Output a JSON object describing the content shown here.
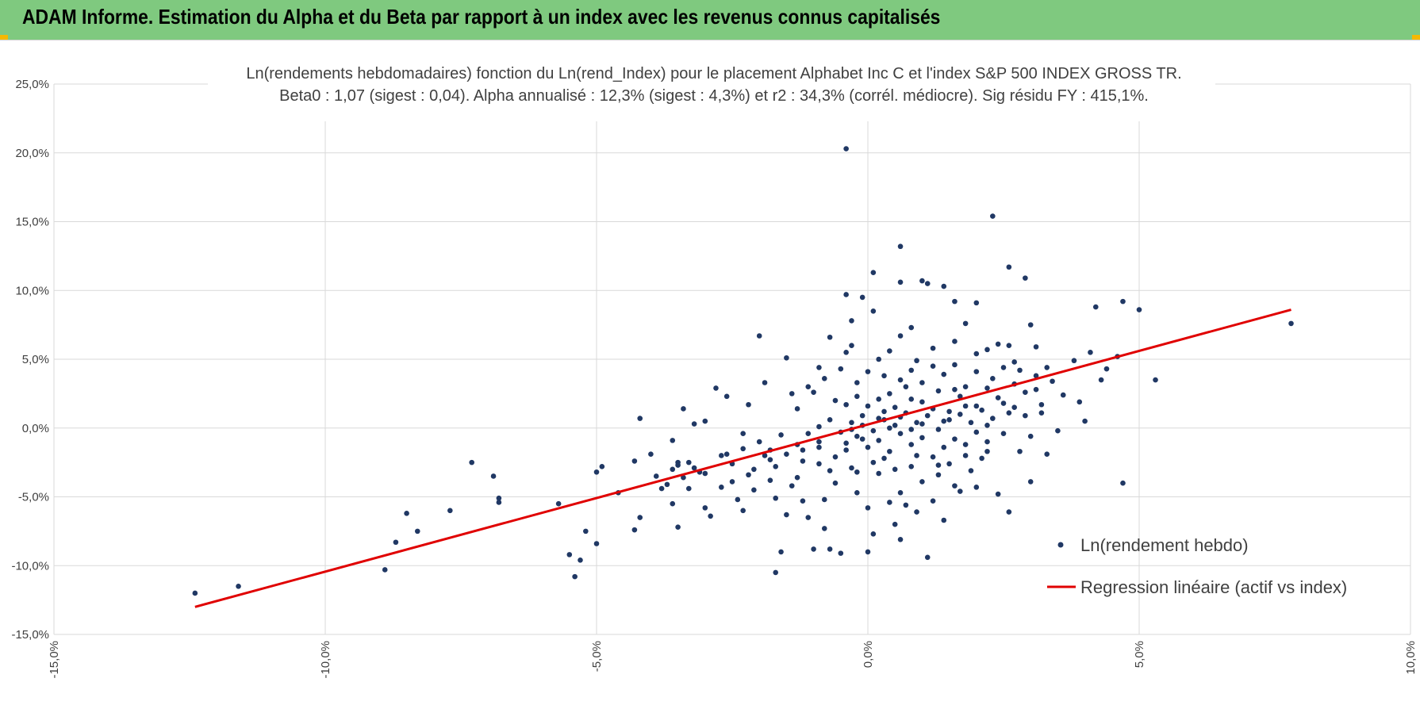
{
  "header": {
    "title": "ADAM Informe. Estimation du Alpha et du Beta par rapport à un index avec les revenus connus capitalisés"
  },
  "colors": {
    "header_bg": "#7fc97f",
    "point": "#203864",
    "regression": "#e00000",
    "grid": "#d9d9d9",
    "corner": "#f5b800"
  },
  "chart_data": {
    "type": "scatter",
    "title": "Ln(rendements hebdomadaires) fonction du Ln(rend_Index) pour le placement Alphabet Inc C et l'index S&P 500 INDEX GROSS TR.",
    "subtitle": "Beta0 : 1,07 (sigest : 0,04).  Alpha annualisé : 12,3% (sigest : 4,3%) et r2 : 34,3% (corrél. médiocre). Sig résidu FY : 415,1%.",
    "xlim": [
      -15,
      10
    ],
    "ylim": [
      -15,
      25
    ],
    "x_ticks": [
      "-15,0%",
      "-10,0%",
      "-5,0%",
      "0,0%",
      "5,0%",
      "10,0%"
    ],
    "y_ticks": [
      "25,0%",
      "20,0%",
      "15,0%",
      "10,0%",
      "5,0%",
      "0,0%",
      "-5,0%",
      "-10,0%",
      "-15,0%"
    ],
    "grid": true,
    "legend_position": "bottom-right",
    "series": [
      {
        "name": "Ln(rendement hebdo)",
        "type": "scatter",
        "points": [
          [
            -12.4,
            -12.0
          ],
          [
            -11.6,
            -11.5
          ],
          [
            -8.9,
            -10.3
          ],
          [
            -8.7,
            -8.3
          ],
          [
            -8.5,
            -6.2
          ],
          [
            -8.3,
            -7.5
          ],
          [
            -7.7,
            -6.0
          ],
          [
            -7.3,
            -2.5
          ],
          [
            -6.9,
            -3.5
          ],
          [
            -6.8,
            -5.1
          ],
          [
            -6.8,
            -5.4
          ],
          [
            -5.7,
            -5.5
          ],
          [
            -5.5,
            -9.2
          ],
          [
            -5.4,
            -10.8
          ],
          [
            -5.3,
            -9.6
          ],
          [
            -5.2,
            -7.5
          ],
          [
            -5.0,
            -8.4
          ],
          [
            -5.0,
            -3.2
          ],
          [
            -4.9,
            -2.8
          ],
          [
            -4.6,
            -4.7
          ],
          [
            -4.3,
            -2.4
          ],
          [
            -4.3,
            -7.4
          ],
          [
            -4.2,
            -6.5
          ],
          [
            -4.2,
            0.7
          ],
          [
            -4.0,
            -1.9
          ],
          [
            -3.9,
            -3.5
          ],
          [
            -3.8,
            -4.4
          ],
          [
            -3.7,
            -4.1
          ],
          [
            -3.3,
            -2.5
          ],
          [
            -3.6,
            -0.9
          ],
          [
            -3.5,
            -2.5
          ],
          [
            -3.5,
            -7.2
          ],
          [
            -3.6,
            -5.5
          ],
          [
            -3.6,
            -3.0
          ],
          [
            -3.5,
            -2.7
          ],
          [
            -3.4,
            -3.6
          ],
          [
            -3.3,
            -4.4
          ],
          [
            -3.2,
            -2.9
          ],
          [
            -3.2,
            0.3
          ],
          [
            -3.1,
            -3.2
          ],
          [
            -3.0,
            -5.8
          ],
          [
            -3.0,
            -3.3
          ],
          [
            -2.9,
            -6.4
          ],
          [
            -2.7,
            -4.3
          ],
          [
            -2.7,
            -2.0
          ],
          [
            -2.5,
            -2.6
          ],
          [
            -2.4,
            -5.2
          ],
          [
            -2.3,
            -6.0
          ],
          [
            -2.3,
            -1.5
          ],
          [
            -2.2,
            -3.4
          ],
          [
            -2.1,
            -4.5
          ],
          [
            -1.9,
            -2.0
          ],
          [
            -1.8,
            -2.3
          ],
          [
            -1.8,
            -3.8
          ],
          [
            -1.7,
            -5.1
          ],
          [
            -1.7,
            -10.5
          ],
          [
            -1.6,
            -9.0
          ],
          [
            -1.5,
            -6.3
          ],
          [
            -1.4,
            -4.2
          ],
          [
            -1.3,
            -3.6
          ],
          [
            -1.2,
            -5.3
          ],
          [
            -1.2,
            -1.6
          ],
          [
            -1.1,
            -6.5
          ],
          [
            -1.0,
            -8.8
          ],
          [
            -0.9,
            -2.6
          ],
          [
            -0.9,
            -1.0
          ],
          [
            -0.8,
            -7.3
          ],
          [
            -0.8,
            -5.2
          ],
          [
            -0.7,
            -3.1
          ],
          [
            -0.7,
            -8.8
          ],
          [
            -0.6,
            -4.0
          ],
          [
            -0.5,
            -9.1
          ],
          [
            -0.4,
            -1.6
          ],
          [
            -0.3,
            -2.9
          ],
          [
            -0.2,
            -4.7
          ],
          [
            -0.1,
            -0.8
          ],
          [
            0.0,
            -9.0
          ],
          [
            0.0,
            -5.8
          ],
          [
            0.1,
            -7.7
          ],
          [
            0.2,
            -3.3
          ],
          [
            0.3,
            -2.2
          ],
          [
            0.4,
            -5.4
          ],
          [
            0.5,
            -7.0
          ],
          [
            0.6,
            -8.1
          ],
          [
            0.6,
            -4.7
          ],
          [
            0.7,
            -5.6
          ],
          [
            0.8,
            -2.8
          ],
          [
            0.9,
            -6.1
          ],
          [
            1.0,
            -3.9
          ],
          [
            1.1,
            -9.4
          ],
          [
            1.2,
            -5.3
          ],
          [
            1.3,
            -3.4
          ],
          [
            1.4,
            -6.7
          ],
          [
            1.5,
            -2.6
          ],
          [
            1.6,
            -4.2
          ],
          [
            1.7,
            -4.6
          ],
          [
            1.8,
            -1.2
          ],
          [
            1.9,
            -3.1
          ],
          [
            2.0,
            -4.3
          ],
          [
            2.1,
            -2.2
          ],
          [
            2.2,
            -1.0
          ],
          [
            2.4,
            -4.8
          ],
          [
            2.6,
            -6.1
          ],
          [
            2.8,
            -1.7
          ],
          [
            3.0,
            -3.9
          ],
          [
            3.0,
            -0.6
          ],
          [
            3.3,
            -1.9
          ],
          [
            4.7,
            -4.0
          ],
          [
            -0.4,
            20.3
          ],
          [
            2.3,
            15.4
          ],
          [
            0.6,
            13.2
          ],
          [
            2.6,
            11.7
          ],
          [
            2.9,
            10.9
          ],
          [
            0.1,
            11.3
          ],
          [
            1.0,
            10.7
          ],
          [
            1.1,
            10.5
          ],
          [
            1.4,
            10.3
          ],
          [
            -0.4,
            9.7
          ],
          [
            -0.1,
            9.5
          ],
          [
            0.6,
            10.6
          ],
          [
            1.6,
            9.2
          ],
          [
            2.0,
            9.1
          ],
          [
            -0.3,
            7.8
          ],
          [
            0.1,
            8.5
          ],
          [
            0.8,
            7.3
          ],
          [
            4.7,
            9.2
          ],
          [
            5.0,
            8.6
          ],
          [
            4.2,
            8.8
          ],
          [
            -0.7,
            6.6
          ],
          [
            -2.0,
            6.7
          ],
          [
            -1.5,
            5.1
          ],
          [
            -0.9,
            4.4
          ],
          [
            -0.4,
            5.5
          ],
          [
            -0.3,
            6.0
          ],
          [
            0.2,
            5.0
          ],
          [
            0.4,
            5.6
          ],
          [
            0.6,
            6.7
          ],
          [
            0.9,
            4.9
          ],
          [
            1.2,
            5.8
          ],
          [
            1.6,
            6.3
          ],
          [
            1.8,
            7.6
          ],
          [
            2.0,
            5.4
          ],
          [
            2.2,
            5.7
          ],
          [
            2.4,
            6.1
          ],
          [
            2.6,
            6.0
          ],
          [
            2.8,
            4.2
          ],
          [
            3.0,
            7.5
          ],
          [
            3.1,
            5.9
          ],
          [
            3.4,
            3.4
          ],
          [
            3.8,
            4.9
          ],
          [
            4.1,
            5.5
          ],
          [
            4.4,
            4.3
          ],
          [
            4.6,
            5.2
          ],
          [
            5.3,
            3.5
          ],
          [
            7.8,
            7.6
          ],
          [
            4.3,
            3.5
          ],
          [
            4.0,
            0.5
          ],
          [
            3.2,
            1.1
          ],
          [
            3.5,
            -0.2
          ],
          [
            -1.9,
            3.3
          ],
          [
            -2.2,
            1.7
          ],
          [
            -2.6,
            2.3
          ],
          [
            -2.8,
            2.9
          ],
          [
            -3.0,
            0.5
          ],
          [
            -3.4,
            1.4
          ],
          [
            -1.3,
            1.4
          ],
          [
            -1.0,
            2.6
          ],
          [
            -0.6,
            2.0
          ],
          [
            -0.4,
            1.7
          ],
          [
            -0.2,
            2.3
          ],
          [
            0.0,
            1.6
          ],
          [
            0.2,
            2.1
          ],
          [
            0.4,
            2.5
          ],
          [
            0.7,
            3.0
          ],
          [
            1.0,
            1.9
          ],
          [
            1.3,
            2.7
          ],
          [
            1.5,
            1.2
          ],
          [
            1.7,
            2.3
          ],
          [
            2.0,
            1.6
          ],
          [
            2.2,
            2.9
          ],
          [
            2.5,
            1.8
          ],
          [
            2.7,
            3.2
          ],
          [
            2.9,
            2.6
          ],
          [
            3.2,
            1.7
          ],
          [
            3.6,
            2.4
          ],
          [
            3.9,
            1.9
          ],
          [
            -1.6,
            -0.5
          ],
          [
            -1.3,
            -1.2
          ],
          [
            -1.1,
            -0.4
          ],
          [
            -0.9,
            0.1
          ],
          [
            -0.7,
            0.6
          ],
          [
            -0.5,
            -0.3
          ],
          [
            -0.3,
            0.4
          ],
          [
            -0.1,
            0.9
          ],
          [
            0.1,
            -0.2
          ],
          [
            0.3,
            0.6
          ],
          [
            0.5,
            0.2
          ],
          [
            0.7,
            1.1
          ],
          [
            0.9,
            0.4
          ],
          [
            1.1,
            0.9
          ],
          [
            1.3,
            -0.1
          ],
          [
            1.5,
            0.6
          ],
          [
            1.7,
            1.0
          ],
          [
            1.9,
            0.4
          ],
          [
            2.1,
            1.3
          ],
          [
            2.3,
            0.7
          ],
          [
            2.5,
            -0.4
          ],
          [
            2.7,
            1.5
          ],
          [
            2.9,
            0.9
          ],
          [
            3.1,
            2.8
          ],
          [
            -2.0,
            -1.0
          ],
          [
            -2.3,
            -0.4
          ],
          [
            -2.6,
            -1.9
          ],
          [
            -1.8,
            -1.6
          ],
          [
            -1.5,
            -1.9
          ],
          [
            -1.2,
            -2.4
          ],
          [
            -0.9,
            -1.4
          ],
          [
            -0.6,
            -2.1
          ],
          [
            -0.4,
            -1.1
          ],
          [
            -0.2,
            -0.6
          ],
          [
            0.0,
            -1.4
          ],
          [
            0.2,
            -0.9
          ],
          [
            0.4,
            -1.7
          ],
          [
            0.6,
            -0.4
          ],
          [
            0.8,
            -1.2
          ],
          [
            1.0,
            -0.7
          ],
          [
            1.2,
            -2.1
          ],
          [
            1.4,
            -1.4
          ],
          [
            1.6,
            -0.8
          ],
          [
            1.8,
            -2.0
          ],
          [
            2.0,
            -0.3
          ],
          [
            2.2,
            -1.7
          ],
          [
            -0.2,
            3.3
          ],
          [
            0.0,
            4.1
          ],
          [
            0.3,
            3.8
          ],
          [
            0.6,
            3.5
          ],
          [
            0.8,
            4.2
          ],
          [
            1.0,
            3.3
          ],
          [
            1.2,
            4.5
          ],
          [
            1.4,
            3.9
          ],
          [
            1.6,
            4.6
          ],
          [
            1.8,
            3.0
          ],
          [
            2.0,
            4.1
          ],
          [
            2.3,
            3.6
          ],
          [
            2.5,
            4.4
          ],
          [
            2.7,
            4.8
          ],
          [
            3.1,
            3.8
          ],
          [
            3.3,
            4.4
          ],
          [
            -0.8,
            3.6
          ],
          [
            -0.5,
            4.3
          ],
          [
            -1.1,
            3.0
          ],
          [
            -1.4,
            2.5
          ],
          [
            -1.7,
            -2.8
          ],
          [
            -2.1,
            -3.0
          ],
          [
            -2.5,
            -3.9
          ],
          [
            -0.2,
            -3.2
          ],
          [
            0.1,
            -2.5
          ],
          [
            0.5,
            -3.0
          ],
          [
            0.9,
            -2.0
          ],
          [
            1.3,
            -2.7
          ],
          [
            0.3,
            1.2
          ],
          [
            0.5,
            1.5
          ],
          [
            0.8,
            2.1
          ],
          [
            1.2,
            1.4
          ],
          [
            1.6,
            2.8
          ],
          [
            2.4,
            2.2
          ],
          [
            -0.3,
            -0.1
          ],
          [
            -0.1,
            0.2
          ],
          [
            0.2,
            0.7
          ],
          [
            0.4,
            0.0
          ],
          [
            0.6,
            0.8
          ],
          [
            0.8,
            -0.1
          ],
          [
            1.0,
            0.3
          ],
          [
            1.4,
            0.5
          ],
          [
            1.8,
            1.6
          ],
          [
            2.2,
            0.2
          ],
          [
            2.6,
            1.1
          ]
        ]
      },
      {
        "name": "Regression linéaire (actif vs index)",
        "type": "line",
        "points": [
          [
            -12.4,
            -13.0
          ],
          [
            7.8,
            8.6
          ]
        ]
      }
    ]
  }
}
